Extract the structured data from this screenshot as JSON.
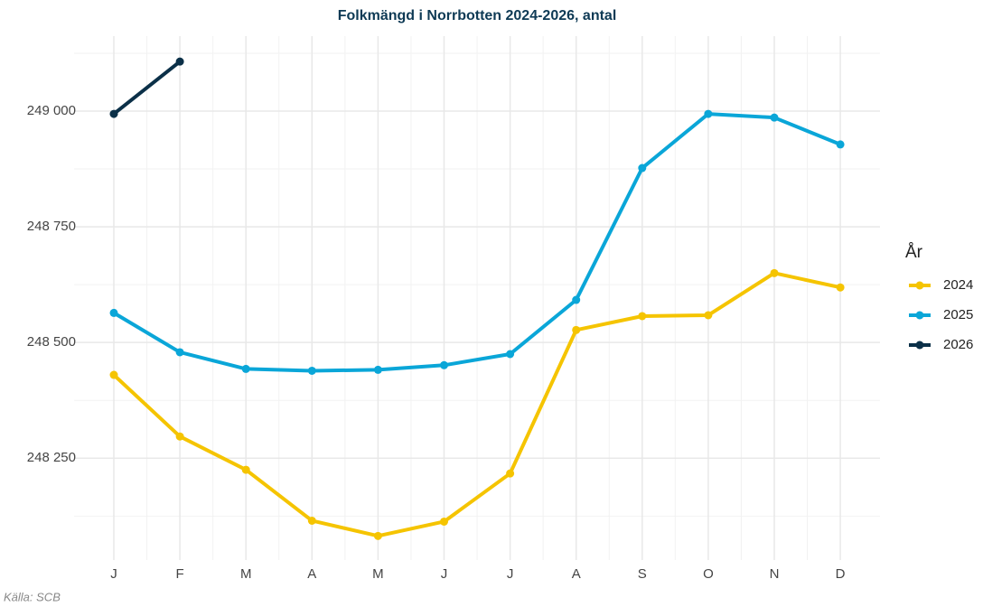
{
  "chart_data": {
    "type": "line",
    "title": "Folkmängd i Norrbotten 2024-2026, antal",
    "caption": "Källa: SCB",
    "legend_title": "År",
    "legend_position": "right",
    "grid": true,
    "categories": [
      "J",
      "F",
      "M",
      "A",
      "M",
      "J",
      "J",
      "A",
      "S",
      "O",
      "N",
      "D"
    ],
    "series": [
      {
        "name": "2024",
        "color": "#f5c400",
        "values": [
          248430,
          248297,
          248225,
          248115,
          248082,
          248113,
          248217,
          248527,
          248557,
          248559,
          248650,
          248619
        ]
      },
      {
        "name": "2025",
        "color": "#0aa6d8",
        "values": [
          248564,
          248479,
          248443,
          248439,
          248441,
          248451,
          248475,
          248592,
          248877,
          248994,
          248986,
          248928
        ]
      },
      {
        "name": "2026",
        "color": "#0b3048",
        "values": [
          248994,
          249107,
          null,
          null,
          null,
          null,
          null,
          null,
          null,
          null,
          null,
          null
        ]
      }
    ],
    "ylim": [
      248030,
      249162
    ],
    "yticks": [
      {
        "value": 248250,
        "label": "248 250"
      },
      {
        "value": 248500,
        "label": "248 500"
      },
      {
        "value": 248750,
        "label": "248 750"
      },
      {
        "value": 249000,
        "label": "249 000"
      }
    ]
  }
}
